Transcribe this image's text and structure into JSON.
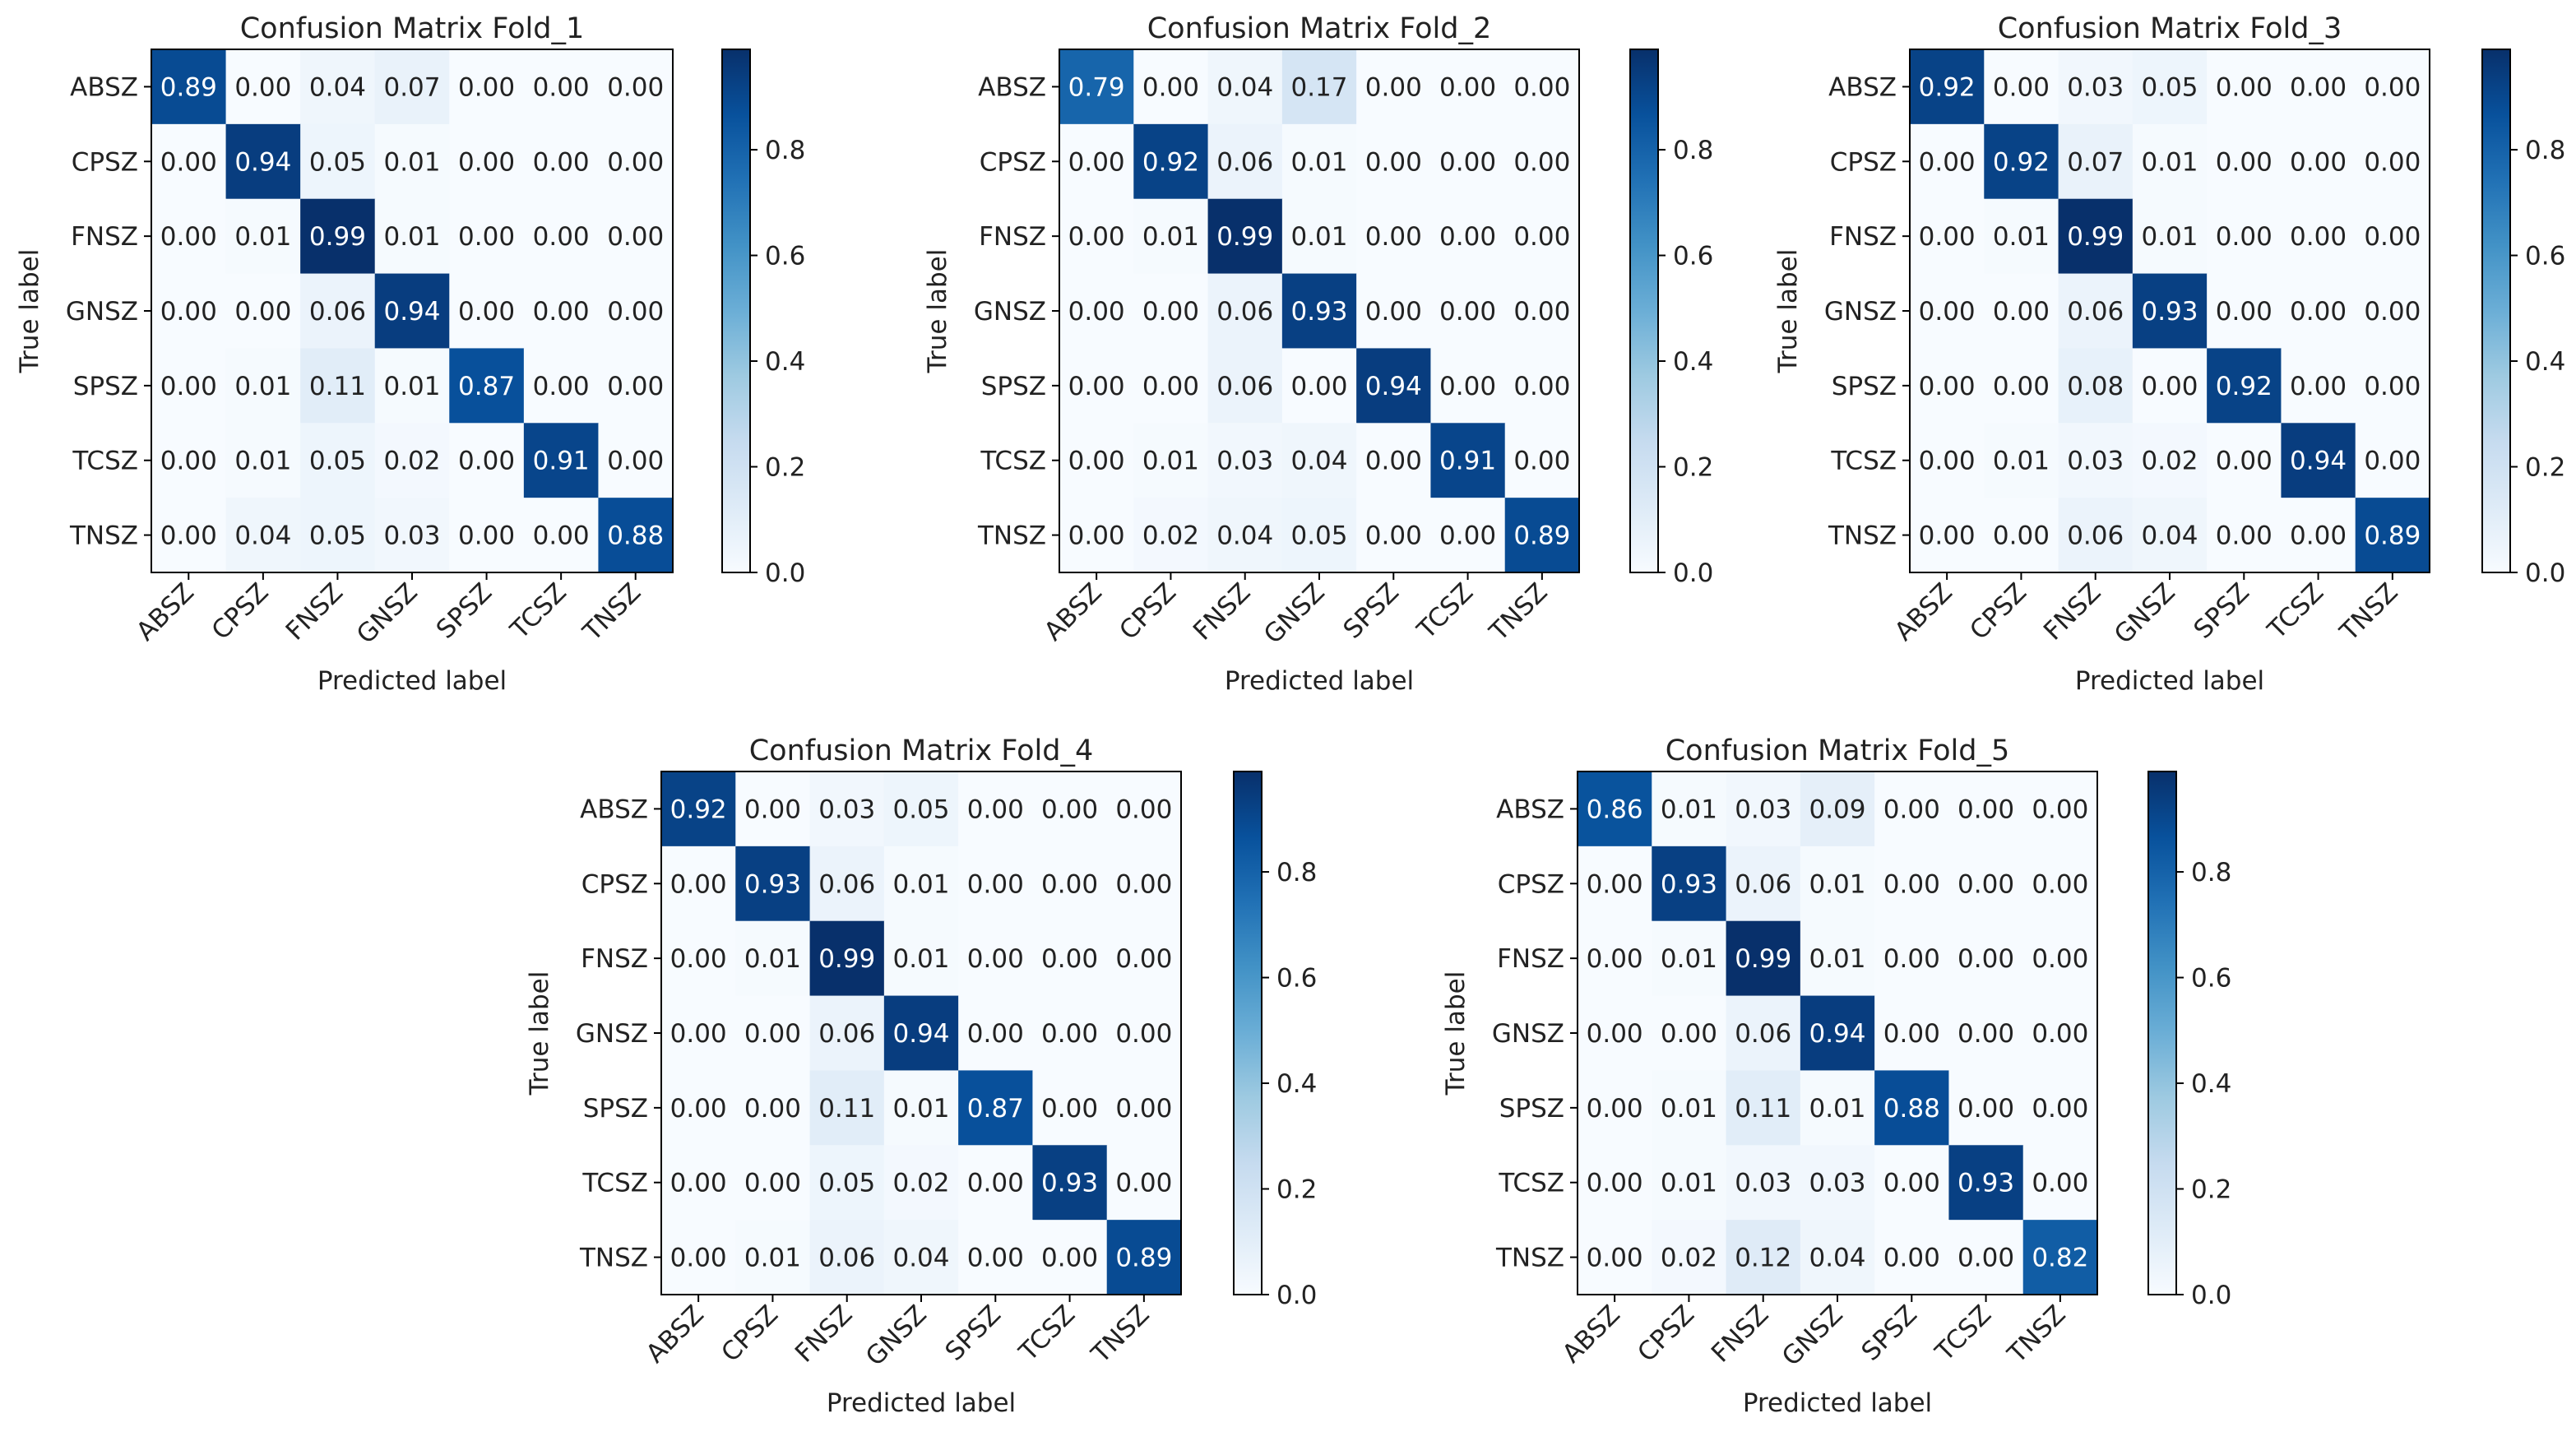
{
  "chart_data": [
    {
      "type": "heatmap",
      "title": "Confusion Matrix Fold_1",
      "xlabel": "Predicted label",
      "ylabel": "True label",
      "classes": [
        "ABSZ",
        "CPSZ",
        "FNSZ",
        "GNSZ",
        "SPSZ",
        "TCSZ",
        "TNSZ"
      ],
      "matrix": [
        [
          "0.89",
          "0.00",
          "0.04",
          "0.07",
          "0.00",
          "0.00",
          "0.00"
        ],
        [
          "0.00",
          "0.94",
          "0.05",
          "0.01",
          "0.00",
          "0.00",
          "0.00"
        ],
        [
          "0.00",
          "0.01",
          "0.99",
          "0.01",
          "0.00",
          "0.00",
          "0.00"
        ],
        [
          "0.00",
          "0.00",
          "0.06",
          "0.94",
          "0.00",
          "0.00",
          "0.00"
        ],
        [
          "0.00",
          "0.01",
          "0.11",
          "0.01",
          "0.87",
          "0.00",
          "0.00"
        ],
        [
          "0.00",
          "0.01",
          "0.05",
          "0.02",
          "0.00",
          "0.91",
          "0.00"
        ],
        [
          "0.00",
          "0.04",
          "0.05",
          "0.03",
          "0.00",
          "0.00",
          "0.88"
        ]
      ],
      "colorbar_ticks": [
        "0.0",
        "0.2",
        "0.4",
        "0.6",
        "0.8"
      ],
      "colorbar_range": [
        0,
        0.99
      ],
      "colormap": "Blues"
    },
    {
      "type": "heatmap",
      "title": "Confusion Matrix Fold_2",
      "xlabel": "Predicted label",
      "ylabel": "True label",
      "classes": [
        "ABSZ",
        "CPSZ",
        "FNSZ",
        "GNSZ",
        "SPSZ",
        "TCSZ",
        "TNSZ"
      ],
      "matrix": [
        [
          "0.79",
          "0.00",
          "0.04",
          "0.17",
          "0.00",
          "0.00",
          "0.00"
        ],
        [
          "0.00",
          "0.92",
          "0.06",
          "0.01",
          "0.00",
          "0.00",
          "0.00"
        ],
        [
          "0.00",
          "0.01",
          "0.99",
          "0.01",
          "0.00",
          "0.00",
          "0.00"
        ],
        [
          "0.00",
          "0.00",
          "0.06",
          "0.93",
          "0.00",
          "0.00",
          "0.00"
        ],
        [
          "0.00",
          "0.00",
          "0.06",
          "0.00",
          "0.94",
          "0.00",
          "0.00"
        ],
        [
          "0.00",
          "0.01",
          "0.03",
          "0.04",
          "0.00",
          "0.91",
          "0.00"
        ],
        [
          "0.00",
          "0.02",
          "0.04",
          "0.05",
          "0.00",
          "0.00",
          "0.89"
        ]
      ],
      "colorbar_ticks": [
        "0.0",
        "0.2",
        "0.4",
        "0.6",
        "0.8"
      ],
      "colorbar_range": [
        0,
        0.99
      ],
      "colormap": "Blues"
    },
    {
      "type": "heatmap",
      "title": "Confusion Matrix Fold_3",
      "xlabel": "Predicted label",
      "ylabel": "True label",
      "classes": [
        "ABSZ",
        "CPSZ",
        "FNSZ",
        "GNSZ",
        "SPSZ",
        "TCSZ",
        "TNSZ"
      ],
      "matrix": [
        [
          "0.92",
          "0.00",
          "0.03",
          "0.05",
          "0.00",
          "0.00",
          "0.00"
        ],
        [
          "0.00",
          "0.92",
          "0.07",
          "0.01",
          "0.00",
          "0.00",
          "0.00"
        ],
        [
          "0.00",
          "0.01",
          "0.99",
          "0.01",
          "0.00",
          "0.00",
          "0.00"
        ],
        [
          "0.00",
          "0.00",
          "0.06",
          "0.93",
          "0.00",
          "0.00",
          "0.00"
        ],
        [
          "0.00",
          "0.00",
          "0.08",
          "0.00",
          "0.92",
          "0.00",
          "0.00"
        ],
        [
          "0.00",
          "0.01",
          "0.03",
          "0.02",
          "0.00",
          "0.94",
          "0.00"
        ],
        [
          "0.00",
          "0.00",
          "0.06",
          "0.04",
          "0.00",
          "0.00",
          "0.89"
        ]
      ],
      "colorbar_ticks": [
        "0.0",
        "0.2",
        "0.4",
        "0.6",
        "0.8"
      ],
      "colorbar_range": [
        0,
        0.99
      ],
      "colormap": "Blues"
    },
    {
      "type": "heatmap",
      "title": "Confusion Matrix Fold_4",
      "xlabel": "Predicted label",
      "ylabel": "True label",
      "classes": [
        "ABSZ",
        "CPSZ",
        "FNSZ",
        "GNSZ",
        "SPSZ",
        "TCSZ",
        "TNSZ"
      ],
      "matrix": [
        [
          "0.92",
          "0.00",
          "0.03",
          "0.05",
          "0.00",
          "0.00",
          "0.00"
        ],
        [
          "0.00",
          "0.93",
          "0.06",
          "0.01",
          "0.00",
          "0.00",
          "0.00"
        ],
        [
          "0.00",
          "0.01",
          "0.99",
          "0.01",
          "0.00",
          "0.00",
          "0.00"
        ],
        [
          "0.00",
          "0.00",
          "0.06",
          "0.94",
          "0.00",
          "0.00",
          "0.00"
        ],
        [
          "0.00",
          "0.00",
          "0.11",
          "0.01",
          "0.87",
          "0.00",
          "0.00"
        ],
        [
          "0.00",
          "0.00",
          "0.05",
          "0.02",
          "0.00",
          "0.93",
          "0.00"
        ],
        [
          "0.00",
          "0.01",
          "0.06",
          "0.04",
          "0.00",
          "0.00",
          "0.89"
        ]
      ],
      "colorbar_ticks": [
        "0.0",
        "0.2",
        "0.4",
        "0.6",
        "0.8"
      ],
      "colorbar_range": [
        0,
        0.99
      ],
      "colormap": "Blues"
    },
    {
      "type": "heatmap",
      "title": "Confusion Matrix Fold_5",
      "xlabel": "Predicted label",
      "ylabel": "True label",
      "classes": [
        "ABSZ",
        "CPSZ",
        "FNSZ",
        "GNSZ",
        "SPSZ",
        "TCSZ",
        "TNSZ"
      ],
      "matrix": [
        [
          "0.86",
          "0.01",
          "0.03",
          "0.09",
          "0.00",
          "0.00",
          "0.00"
        ],
        [
          "0.00",
          "0.93",
          "0.06",
          "0.01",
          "0.00",
          "0.00",
          "0.00"
        ],
        [
          "0.00",
          "0.01",
          "0.99",
          "0.01",
          "0.00",
          "0.00",
          "0.00"
        ],
        [
          "0.00",
          "0.00",
          "0.06",
          "0.94",
          "0.00",
          "0.00",
          "0.00"
        ],
        [
          "0.00",
          "0.01",
          "0.11",
          "0.01",
          "0.88",
          "0.00",
          "0.00"
        ],
        [
          "0.00",
          "0.01",
          "0.03",
          "0.03",
          "0.00",
          "0.93",
          "0.00"
        ],
        [
          "0.00",
          "0.02",
          "0.12",
          "0.04",
          "0.00",
          "0.00",
          "0.82"
        ]
      ],
      "colorbar_ticks": [
        "0.0",
        "0.2",
        "0.4",
        "0.6",
        "0.8"
      ],
      "colorbar_range": [
        0,
        0.99
      ],
      "colormap": "Blues"
    }
  ]
}
